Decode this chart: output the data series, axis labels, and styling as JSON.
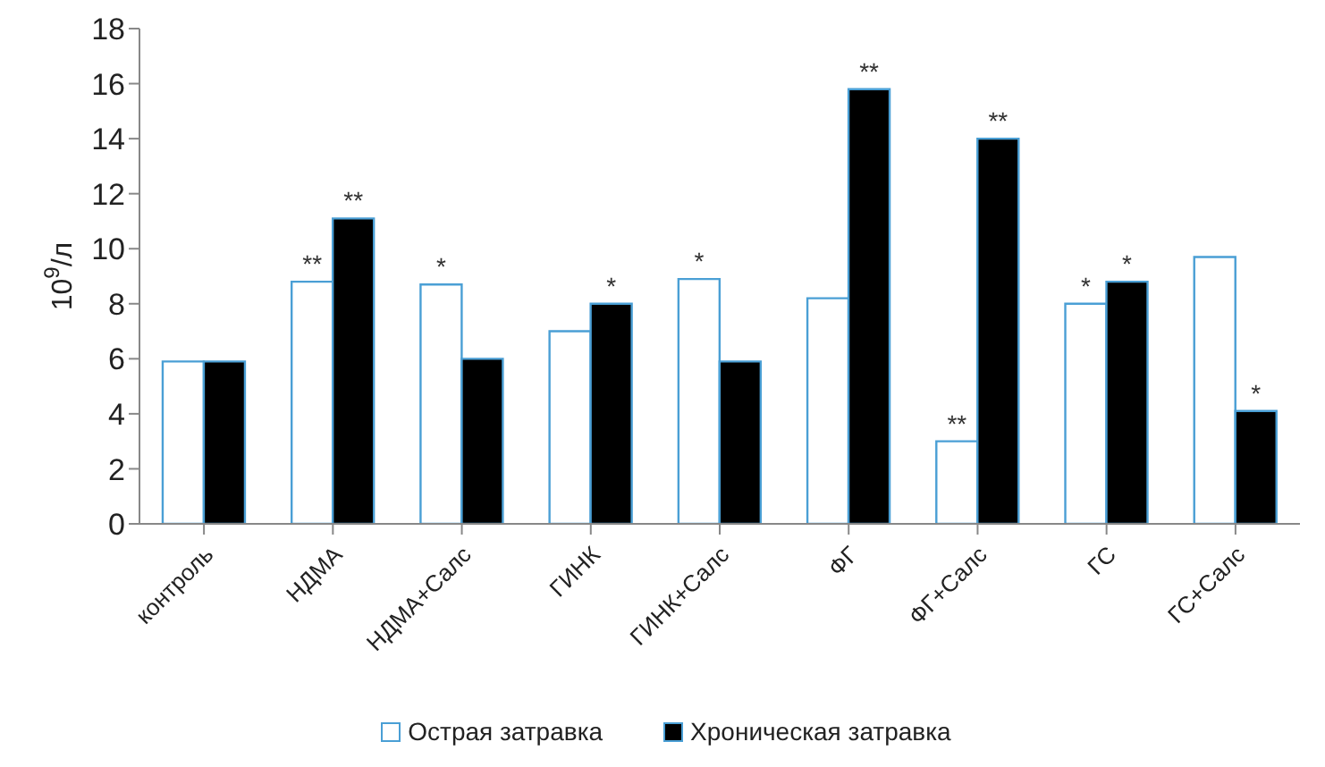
{
  "chart_data": {
    "type": "bar",
    "ylabel": "10$^{9}$/л",
    "categories": [
      "контроль",
      "НДМА",
      "НДМА+Салс",
      "ГИНК",
      "ГИНК+Салс",
      "ФГ",
      "ФГ+Салс",
      "ГС",
      "ГС+Салс"
    ],
    "series": [
      {
        "name": "Острая затравка",
        "color": "#ffffff",
        "values": [
          5.9,
          8.8,
          8.7,
          7.0,
          8.9,
          8.2,
          3.0,
          8.0,
          9.7
        ],
        "value_labels": [
          null,
          "**",
          "*",
          null,
          "*",
          null,
          "**",
          "*",
          null
        ]
      },
      {
        "name": "Хроническая затравка",
        "color": "#000000",
        "values": [
          5.9,
          11.1,
          6.0,
          8.0,
          5.9,
          15.8,
          14.0,
          8.8,
          4.1
        ],
        "value_labels": [
          null,
          "**",
          null,
          "*",
          null,
          "**",
          "**",
          "*",
          "*"
        ]
      }
    ],
    "ylim": [
      0,
      18
    ],
    "yticks": [
      0,
      2,
      4,
      6,
      8,
      10,
      12,
      14,
      16,
      18
    ],
    "grid": false,
    "legend": "bottom"
  }
}
